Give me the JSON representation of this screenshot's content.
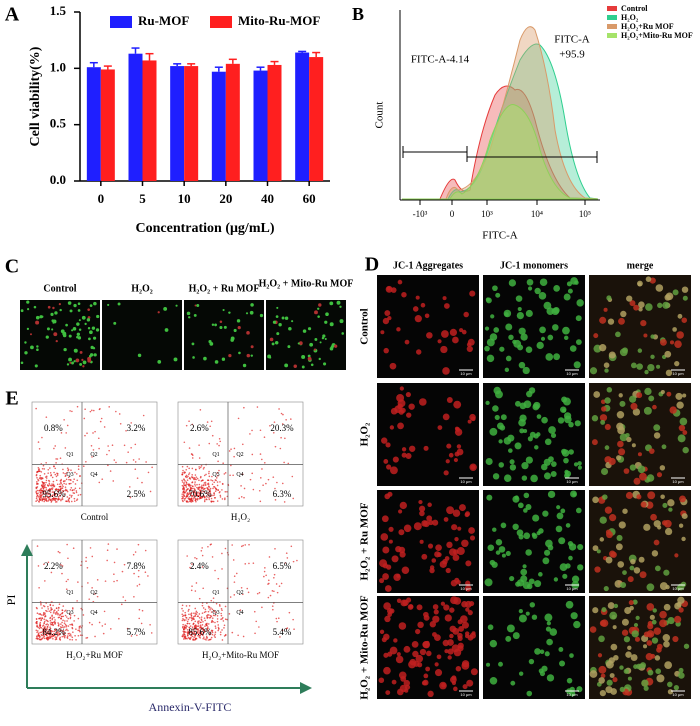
{
  "chart_data": {
    "type": "bar",
    "panel_label": "A",
    "categories": [
      "0",
      "5",
      "10",
      "20",
      "40",
      "60"
    ],
    "series": [
      {
        "name": "Ru-MOF",
        "color": "#1f1fff",
        "values": [
          1.01,
          1.13,
          1.02,
          0.97,
          0.98,
          1.14
        ],
        "errors": [
          0.04,
          0.05,
          0.02,
          0.04,
          0.03,
          0.01
        ]
      },
      {
        "name": "Mito-Ru-MOF",
        "color": "#ff1f1f",
        "values": [
          0.99,
          1.07,
          1.02,
          1.04,
          1.03,
          1.1
        ],
        "errors": [
          0.03,
          0.06,
          0.02,
          0.04,
          0.03,
          0.04
        ]
      }
    ],
    "ylim": [
      0,
      1.5
    ],
    "yticks": [
      {
        "value": 0,
        "label": "0.0"
      },
      {
        "value": 0.5,
        "label": "0.5"
      },
      {
        "value": 1.0,
        "label": "1.0"
      },
      {
        "value": 1.5,
        "label": "1.5"
      }
    ],
    "x_label": "Concentration (μg/mL)",
    "y_label": "Cell viability(%)",
    "legend": "top"
  },
  "flow_histogram": {
    "panel_label": "B",
    "legend": [
      "Control",
      "H₂O₂",
      "H₂O₂+Ru MOF",
      "H₂O₂+Mito-Ru MOF"
    ],
    "gate_left": "FITC-A-4.14",
    "gate_right": [
      "FITC-A",
      "+95.9"
    ],
    "x_label": "FITC-A",
    "y_label": "Count",
    "x_tick_labels": [
      "-10³",
      "0",
      "10³",
      "10⁴",
      "10⁵"
    ]
  },
  "ros_images": {
    "panel_label": "C",
    "labels": [
      "Control",
      "H₂O₂",
      "H₂O₂ + Ru MOF",
      "H₂O₂ + Mito-Ru MOF"
    ]
  },
  "jc1_images": {
    "panel_label": "D",
    "columns": [
      "JC-1 Aggregates",
      "JC-1 monomers",
      "merge"
    ],
    "rows": [
      "Control",
      "H₂O₂",
      "H₂O₂ + Ru MOF",
      "H₂O₂ + Mito-Ru MOF"
    ],
    "scale_bar": "10 μm"
  },
  "apoptosis": {
    "panel_label": "E",
    "y_label": "PI",
    "x_label": "Annexin-V-FITC",
    "quadrant_names": [
      "Q1",
      "Q2",
      "Q3",
      "Q4"
    ],
    "plots": [
      {
        "label": "Control",
        "q1": "0.8%",
        "q2": "3.2%",
        "q3": "95.6%",
        "q4": "2.5%"
      },
      {
        "label": "H₂O₂",
        "q1": "2.6%",
        "q2": "20.3%",
        "q3": "70.6%",
        "q4": "6.3%"
      },
      {
        "label": "H₂O₂+Ru MOF",
        "q1": "2.2%",
        "q2": "7.8%",
        "q3": "84.2%",
        "q4": "5.7%"
      },
      {
        "label": "H₂O₂+Mito-Ru MOF",
        "q1": "2.4%",
        "q2": "6.5%",
        "q3": "85.6%",
        "q4": "5.4%"
      }
    ]
  }
}
